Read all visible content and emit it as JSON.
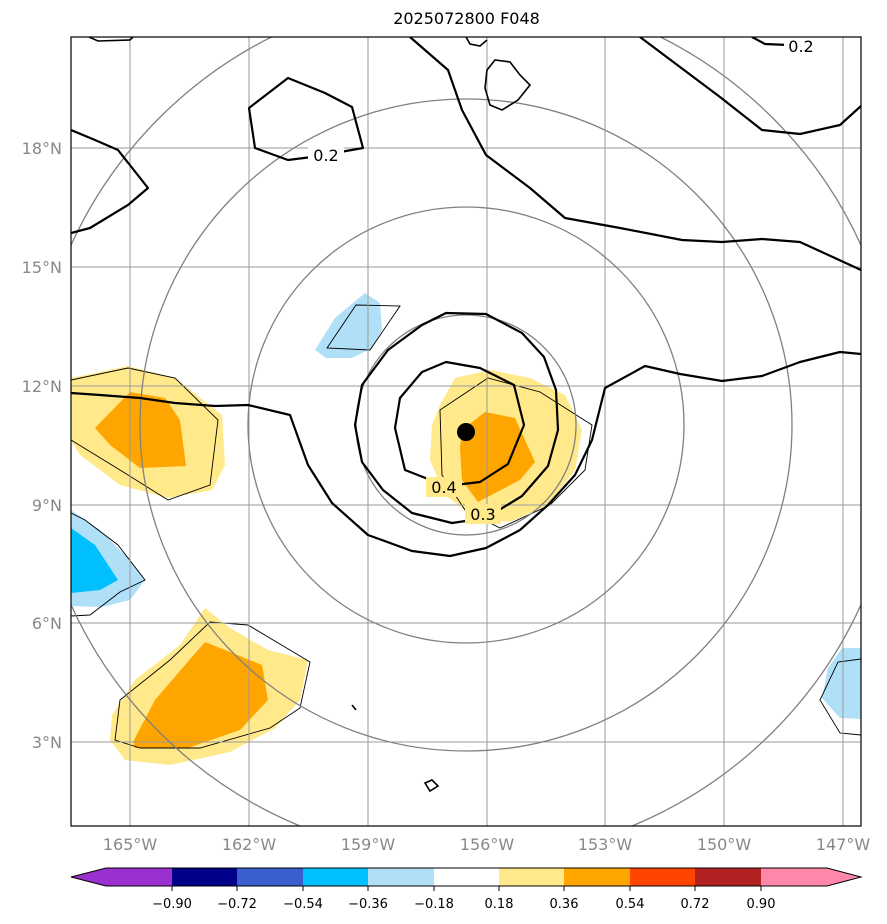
{
  "title": "2025072800 F048",
  "lat_labels": [
    "18°N",
    "15°N",
    "12°N",
    "9°N",
    "6°N",
    "3°N"
  ],
  "lon_labels": [
    "165°W",
    "162°W",
    "159°W",
    "156°W",
    "153°W",
    "150°W",
    "147°W"
  ],
  "contour_labels": [
    "0.2",
    "0.2",
    "0.4",
    "0.3"
  ],
  "colorbar": {
    "ticks": [
      "−0.90",
      "−0.72",
      "−0.54",
      "−0.36",
      "−0.18",
      "0.18",
      "0.36",
      "0.54",
      "0.72",
      "0.90"
    ],
    "colors": [
      "#9b30d0",
      "#00008b",
      "#3a5fcd",
      "#00bfff",
      "#b0e0f8",
      "#ffffff",
      "#ffe98a",
      "#ffa500",
      "#ff4500",
      "#b22222",
      "#ff88aa"
    ]
  },
  "storm_center": {
    "lon": "156.5°W",
    "lat": "10.8°N"
  }
}
